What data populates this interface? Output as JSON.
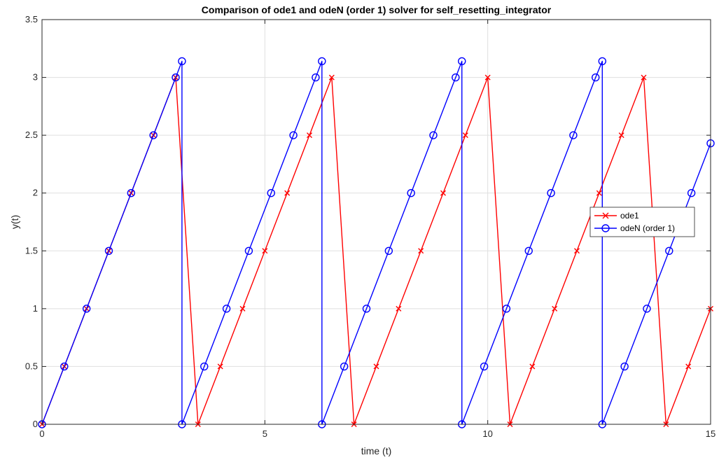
{
  "chart_data": {
    "type": "line",
    "title": "Comparison of ode1 and odeN (order 1) solver for self_resetting_integrator",
    "xlabel": "time (t)",
    "ylabel": "y(t)",
    "xlim": [
      0,
      15
    ],
    "ylim": [
      0,
      3.5
    ],
    "xticks": [
      "0",
      "5",
      "10",
      "15"
    ],
    "yticks": [
      "0",
      "0.5",
      "1",
      "1.5",
      "2",
      "2.5",
      "3",
      "3.5"
    ],
    "grid": true,
    "legend_position": "center-right",
    "series": [
      {
        "name": "ode1",
        "color": "#ff0000",
        "marker": "x",
        "x": [
          0,
          0.5,
          1,
          1.5,
          2,
          2.5,
          3,
          3.5,
          4,
          4.5,
          5,
          5.5,
          6,
          6.5,
          7,
          7.5,
          8,
          8.5,
          9,
          9.5,
          10,
          10.5,
          11,
          11.5,
          12,
          12.5,
          13,
          13.5,
          14,
          14.5,
          15
        ],
        "y": [
          0,
          0.5,
          1,
          1.5,
          2,
          2.5,
          3,
          0,
          0.5,
          1,
          1.5,
          2,
          2.5,
          3,
          0,
          0.5,
          1,
          1.5,
          2,
          2.5,
          3,
          0,
          0.5,
          1,
          1.5,
          2,
          2.5,
          3,
          0,
          0.5,
          1
        ]
      },
      {
        "name": "odeN (order 1)",
        "color": "#0000ff",
        "marker": "o",
        "x": [
          0,
          0.5,
          1,
          1.5,
          2,
          2.5,
          3,
          3.14,
          3.14,
          3.64,
          4.14,
          4.64,
          5.14,
          5.64,
          6.14,
          6.28,
          6.28,
          6.78,
          7.28,
          7.78,
          8.28,
          8.78,
          9.28,
          9.42,
          9.42,
          9.92,
          10.42,
          10.92,
          11.42,
          11.92,
          12.42,
          12.57,
          12.57,
          13.07,
          13.57,
          14.07,
          14.57,
          15
        ],
        "y": [
          0,
          0.5,
          1,
          1.5,
          2,
          2.5,
          3,
          3.14,
          0,
          0.5,
          1,
          1.5,
          2,
          2.5,
          3,
          3.14,
          0,
          0.5,
          1,
          1.5,
          2,
          2.5,
          3,
          3.14,
          0,
          0.5,
          1,
          1.5,
          2,
          2.5,
          3,
          3.14,
          0,
          0.5,
          1,
          1.5,
          2,
          2.43
        ]
      }
    ]
  }
}
